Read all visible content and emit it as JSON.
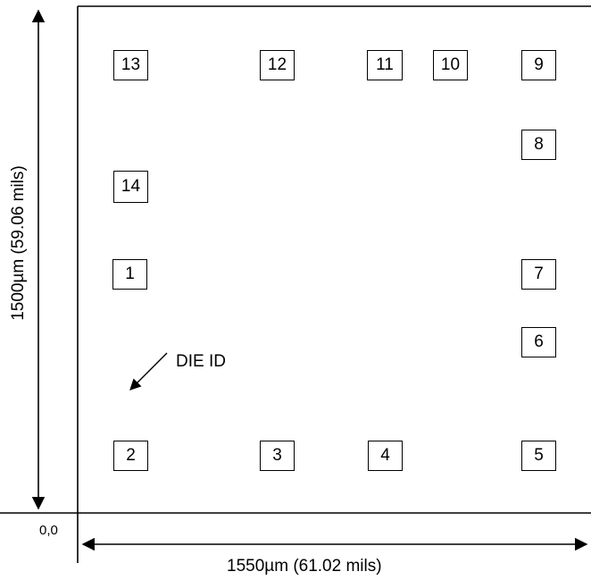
{
  "diagram": {
    "width_label": "1550µm (61.02 mils)",
    "height_label": "1500µm (59.06 mils)",
    "origin_label": "0,0",
    "die_id_label": "DIE ID",
    "pads": [
      {
        "label": "13"
      },
      {
        "label": "12"
      },
      {
        "label": "11"
      },
      {
        "label": "10"
      },
      {
        "label": "9"
      },
      {
        "label": "8"
      },
      {
        "label": "14"
      },
      {
        "label": "1"
      },
      {
        "label": "7"
      },
      {
        "label": "6"
      },
      {
        "label": "2"
      },
      {
        "label": "3"
      },
      {
        "label": "4"
      },
      {
        "label": "5"
      }
    ]
  }
}
